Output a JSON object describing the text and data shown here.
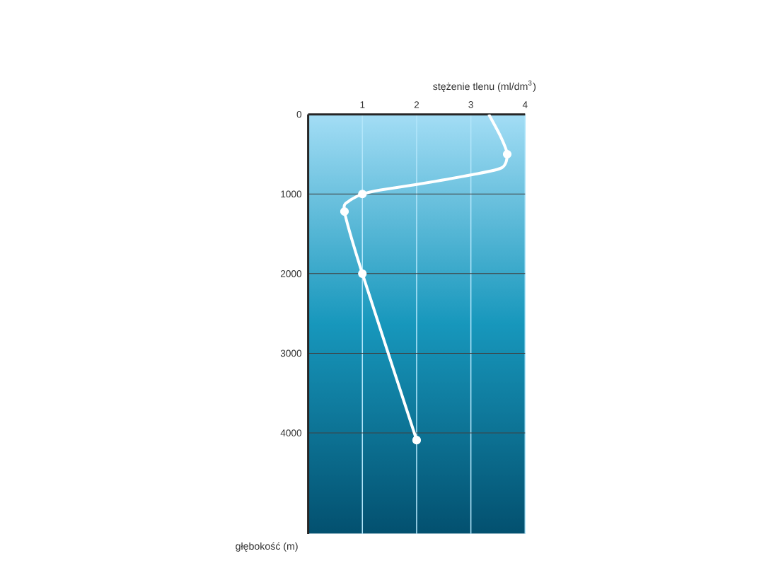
{
  "chart_data": {
    "type": "line",
    "xlabel": "stężenie tlenu (ml/dm$^{3}$)",
    "ylabel": "głębokość (m)",
    "xlim": [
      0,
      4
    ],
    "xticks": [
      1,
      2,
      3,
      4
    ],
    "ylim": [
      5270,
      0
    ],
    "yticks": [
      0,
      1000,
      2000,
      3000,
      4000
    ],
    "grid": true,
    "series": [
      {
        "color": "#ffffff",
        "marker": "none",
        "x": [
          3.33,
          3.55,
          3.67,
          3.57,
          3.0,
          2.0,
          1.32,
          1.0,
          0.75,
          0.67,
          1.0,
          2.0
        ],
        "values": [
          0,
          280,
          500,
          670,
          760,
          880,
          950,
          1000,
          1090,
          1220,
          2000,
          4090
        ]
      },
      {
        "type": "scatter",
        "color": "#ffffff",
        "marker": "circle",
        "x": [
          3.67,
          1.0,
          0.67,
          1.0,
          2.0
        ],
        "values": [
          500,
          1000,
          1220,
          2000,
          4090
        ]
      }
    ]
  }
}
